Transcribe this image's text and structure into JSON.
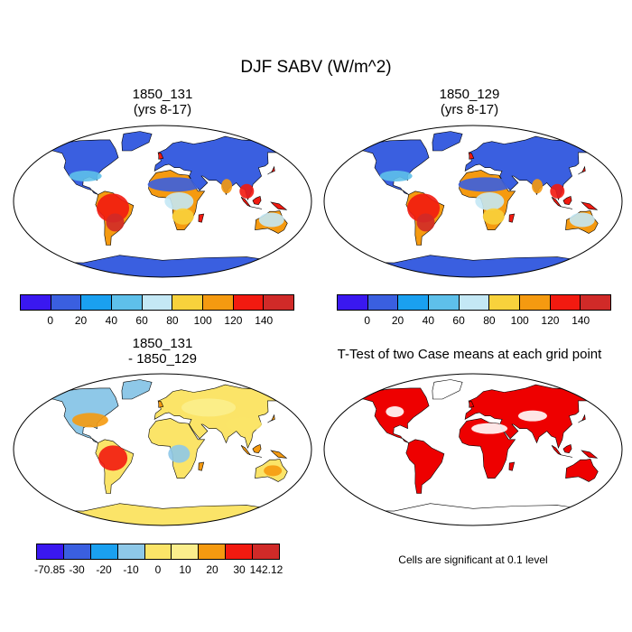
{
  "figure": {
    "title": "DJF SABV (W/m^2)",
    "panels": [
      {
        "id": "p1",
        "title_line1": "1850_131",
        "title_line2": "(yrs 8-17)"
      },
      {
        "id": "p2",
        "title_line1": "1850_129",
        "title_line2": "(yrs 8-17)"
      },
      {
        "id": "p3",
        "title_line1": "1850_131",
        "title_line2": "- 1850_129"
      },
      {
        "id": "p4",
        "title_line1": "T-Test of two Case means at each grid point",
        "title_line2": ""
      }
    ],
    "colorbar_abs": {
      "colors": [
        "#3a18f0",
        "#3a5fe0",
        "#1aa0f0",
        "#5ec0ea",
        "#c4e8f5",
        "#f8d23c",
        "#f59a10",
        "#f21a10",
        "#d02a28"
      ],
      "labels": [
        "0",
        "20",
        "40",
        "60",
        "80",
        "100",
        "120",
        "140"
      ]
    },
    "colorbar_diff": {
      "colors": [
        "#3a18f0",
        "#3a5fe0",
        "#1aa0f0",
        "#8ec8e8",
        "#fbe468",
        "#fbee8c",
        "#f59a10",
        "#f21a10",
        "#d02a28"
      ],
      "labels": [
        "-70.85",
        "-30",
        "-20",
        "-10",
        "0",
        "10",
        "20",
        "30",
        "142.12"
      ]
    },
    "ttest_note": "Cells are significant at 0.1 level",
    "ttest_color": "#ee0000"
  }
}
